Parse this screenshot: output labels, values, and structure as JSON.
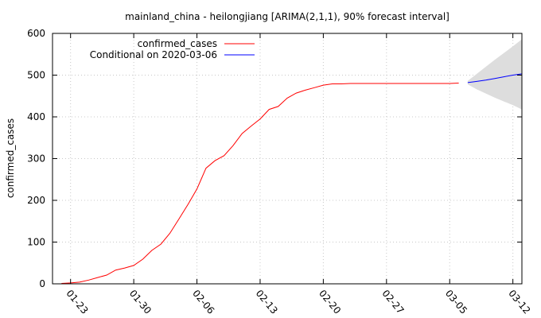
{
  "chart_data": {
    "type": "line",
    "title": "mainland_china - heilongjiang [ARIMA(2,1,1), 90% forecast interval]",
    "xlabel": "",
    "ylabel": "confirmed_cases",
    "ylim": [
      0,
      600
    ],
    "yticks": [
      0,
      100,
      200,
      300,
      400,
      500,
      600
    ],
    "xticks": [
      "01-23",
      "01-30",
      "02-06",
      "02-13",
      "02-20",
      "02-27",
      "03-05",
      "03-12"
    ],
    "xrange": [
      "2020-01-21",
      "2020-03-13"
    ],
    "grid": true,
    "legend": "top-center",
    "series": [
      {
        "name": "confirmed_cases",
        "color": "#ff0000",
        "points": [
          [
            "2020-01-22",
            1
          ],
          [
            "2020-01-23",
            2
          ],
          [
            "2020-01-24",
            4
          ],
          [
            "2020-01-25",
            9
          ],
          [
            "2020-01-26",
            15
          ],
          [
            "2020-01-27",
            21
          ],
          [
            "2020-01-28",
            33
          ],
          [
            "2020-01-29",
            38
          ],
          [
            "2020-01-30",
            44
          ],
          [
            "2020-01-31",
            59
          ],
          [
            "2020-02-01",
            80
          ],
          [
            "2020-02-02",
            95
          ],
          [
            "2020-02-03",
            121
          ],
          [
            "2020-02-04",
            155
          ],
          [
            "2020-02-05",
            190
          ],
          [
            "2020-02-06",
            227
          ],
          [
            "2020-02-07",
            277
          ],
          [
            "2020-02-08",
            295
          ],
          [
            "2020-02-09",
            307
          ],
          [
            "2020-02-10",
            331
          ],
          [
            "2020-02-11",
            360
          ],
          [
            "2020-02-12",
            378
          ],
          [
            "2020-02-13",
            395
          ],
          [
            "2020-02-14",
            418
          ],
          [
            "2020-02-15",
            425
          ],
          [
            "2020-02-16",
            445
          ],
          [
            "2020-02-17",
            457
          ],
          [
            "2020-02-18",
            464
          ],
          [
            "2020-02-19",
            470
          ],
          [
            "2020-02-20",
            476
          ],
          [
            "2020-02-21",
            479
          ],
          [
            "2020-02-22",
            479
          ],
          [
            "2020-02-23",
            480
          ],
          [
            "2020-02-24",
            480
          ],
          [
            "2020-02-25",
            480
          ],
          [
            "2020-02-26",
            480
          ],
          [
            "2020-02-27",
            480
          ],
          [
            "2020-02-28",
            480
          ],
          [
            "2020-02-29",
            480
          ],
          [
            "2020-03-01",
            480
          ],
          [
            "2020-03-02",
            480
          ],
          [
            "2020-03-03",
            480
          ],
          [
            "2020-03-04",
            480
          ],
          [
            "2020-03-05",
            480
          ],
          [
            "2020-03-06",
            481
          ]
        ]
      },
      {
        "name": "Conditional on 2020-03-06",
        "color": "#0000ff",
        "points": [
          [
            "2020-03-07",
            482
          ],
          [
            "2020-03-08",
            485
          ],
          [
            "2020-03-09",
            488
          ],
          [
            "2020-03-10",
            492
          ],
          [
            "2020-03-11",
            496
          ],
          [
            "2020-03-12",
            500
          ],
          [
            "2020-03-13",
            503
          ]
        ]
      }
    ],
    "forecast_interval": {
      "color": "#dddddd",
      "points": [
        [
          "2020-03-07",
          478,
          486
        ],
        [
          "2020-03-08",
          466,
          503
        ],
        [
          "2020-03-09",
          456,
          520
        ],
        [
          "2020-03-10",
          446,
          537
        ],
        [
          "2020-03-11",
          437,
          553
        ],
        [
          "2020-03-12",
          428,
          569
        ],
        [
          "2020-03-13",
          418,
          586
        ]
      ]
    }
  }
}
